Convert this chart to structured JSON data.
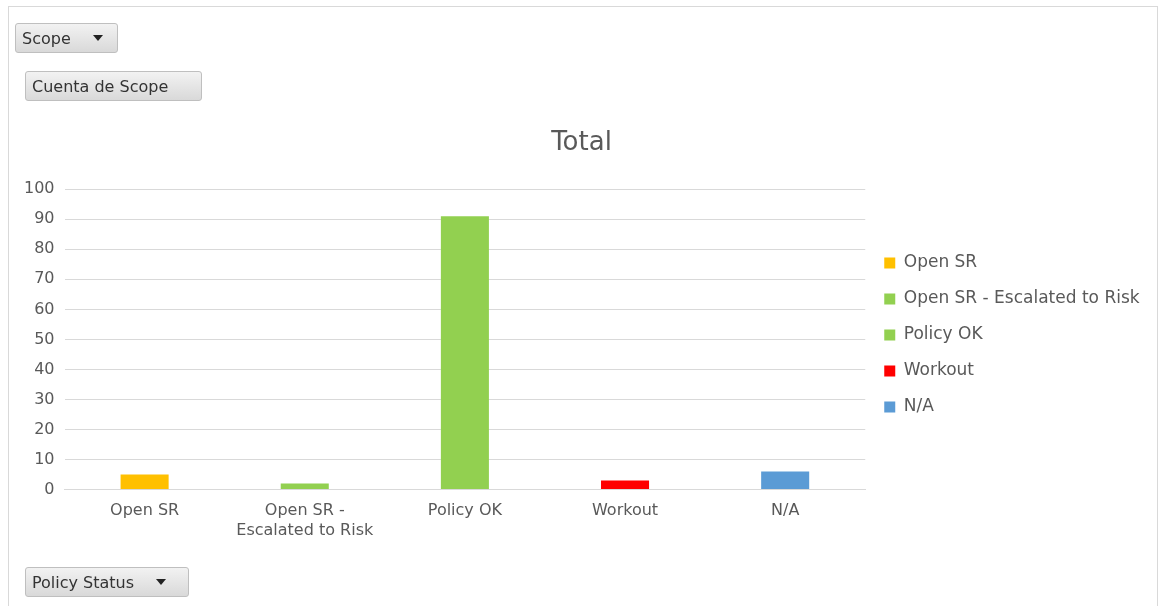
{
  "chart_data": {
    "type": "bar",
    "title": "Total",
    "categories": [
      "Open SR",
      "Open SR - Escalated to Risk",
      "Policy OK",
      "Workout",
      "N/A"
    ],
    "series": [
      {
        "name": "Open SR",
        "color": "#ffc000",
        "values": [
          5,
          null,
          null,
          null,
          null
        ]
      },
      {
        "name": "Open SR - Escalated to Risk",
        "color": "#92d050",
        "values": [
          null,
          2,
          null,
          null,
          null
        ]
      },
      {
        "name": "Policy OK",
        "color": "#92d050",
        "values": [
          null,
          null,
          91,
          null,
          null
        ]
      },
      {
        "name": "Workout",
        "color": "#ff0000",
        "values": [
          null,
          null,
          null,
          3,
          null
        ]
      },
      {
        "name": "N/A",
        "color": "#5b9bd5",
        "values": [
          null,
          null,
          null,
          null,
          6
        ]
      }
    ],
    "ylim": [
      0,
      100
    ],
    "yticks": [
      0,
      10,
      20,
      30,
      40,
      50,
      60,
      70,
      80,
      90,
      100
    ],
    "grid": "y",
    "legend": "right",
    "annotations": [
      "Scope",
      "Cuenta de Scope",
      "Policy Status"
    ]
  }
}
